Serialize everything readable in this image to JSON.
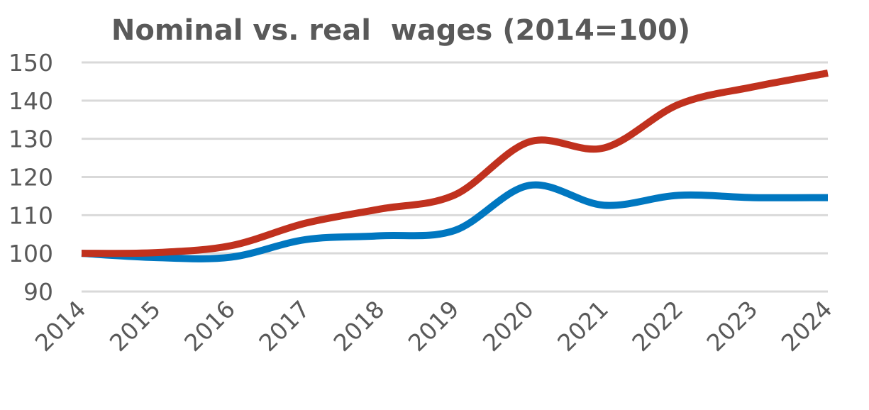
{
  "chart_data": {
    "type": "line",
    "title": "Nominal vs. real  wages (2014=100)",
    "xlabel": "",
    "ylabel": "",
    "x": [
      "2014",
      "2015",
      "2016",
      "2017",
      "2018",
      "2019",
      "2020",
      "2021",
      "2022",
      "2023",
      "2024"
    ],
    "ylim": [
      90,
      150
    ],
    "yticks": [
      90,
      100,
      110,
      120,
      130,
      140,
      150
    ],
    "grid": true,
    "legend": "none",
    "smooth": true,
    "series": [
      {
        "color": "#c0311e",
        "values": [
          100,
          100.2,
          102,
          107.9,
          111.6,
          115.3,
          129.2,
          127.6,
          139,
          143.6,
          147.2
        ]
      },
      {
        "color": "#0077c0",
        "values": [
          100,
          98.9,
          99,
          103.6,
          104.6,
          106,
          117.8,
          112.6,
          115.2,
          114.6,
          114.6
        ]
      }
    ]
  }
}
